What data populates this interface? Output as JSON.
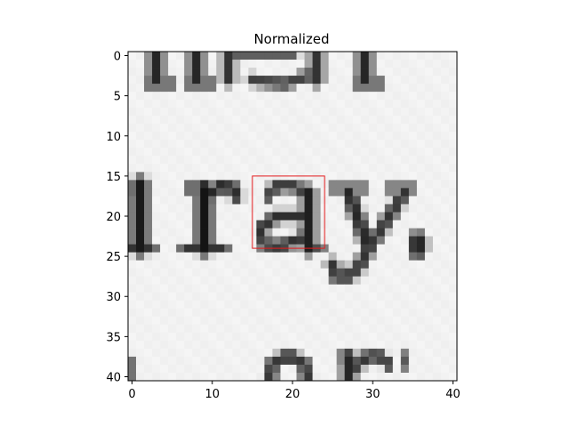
{
  "chart_data": {
    "type": "heatmap",
    "title": "Normalized",
    "xlabel": "",
    "ylabel": "",
    "image_size": [
      41,
      41
    ],
    "xlim": [
      -0.5,
      40.5
    ],
    "ylim": [
      40.5,
      -0.5
    ],
    "xticks": [
      0,
      10,
      20,
      30,
      40
    ],
    "yticks": [
      0,
      5,
      10,
      15,
      20,
      25,
      30,
      35,
      40
    ],
    "colormap": "gray",
    "background_value": 0.96,
    "ink_value": 0.12,
    "highlight_box": {
      "x": [
        15,
        24
      ],
      "y": [
        15,
        24
      ],
      "color": "#e41a1c"
    },
    "visible_text_in_image": [
      "ray.",
      "or"
    ],
    "strokes": [
      {
        "pts": [
          [
            3,
            -1
          ],
          [
            3,
            3
          ]
        ],
        "w": 1.4,
        "v": 0.15
      },
      {
        "pts": [
          [
            2,
            3.5
          ],
          [
            5,
            3.5
          ]
        ],
        "w": 0.9,
        "v": 0.25
      },
      {
        "pts": [
          [
            8,
            -1
          ],
          [
            8,
            3
          ]
        ],
        "w": 1.4,
        "v": 0.15
      },
      {
        "pts": [
          [
            7,
            3.5
          ],
          [
            10,
            3.5
          ]
        ],
        "w": 0.9,
        "v": 0.25
      },
      {
        "pts": [
          [
            12,
            -1
          ],
          [
            12,
            3
          ]
        ],
        "w": 1.2,
        "v": 0.2
      },
      {
        "pts": [
          [
            13,
            -0.5
          ],
          [
            20,
            -0.5
          ]
        ],
        "w": 1.2,
        "v": 0.25
      },
      {
        "pts": [
          [
            15,
            3
          ],
          [
            19,
            3.5
          ],
          [
            22,
            2.5
          ]
        ],
        "w": 1.1,
        "v": 0.25
      },
      {
        "pts": [
          [
            23,
            0
          ],
          [
            23,
            3
          ]
        ],
        "w": 1.3,
        "v": 0.2
      },
      {
        "pts": [
          [
            29,
            -1
          ],
          [
            29,
            3
          ]
        ],
        "w": 1.4,
        "v": 0.15
      },
      {
        "pts": [
          [
            28,
            3.5
          ],
          [
            31,
            3.5
          ]
        ],
        "w": 0.9,
        "v": 0.25
      },
      {
        "pts": [
          [
            1,
            16
          ],
          [
            1,
            24
          ]
        ],
        "w": 1.5,
        "v": 0.1
      },
      {
        "pts": [
          [
            0,
            16.5
          ],
          [
            1.5,
            16.5
          ]
        ],
        "w": 0.9,
        "v": 0.2
      },
      {
        "pts": [
          [
            0,
            24
          ],
          [
            2.5,
            24
          ]
        ],
        "w": 0.9,
        "v": 0.2
      },
      {
        "pts": [
          [
            9,
            16.5
          ],
          [
            9,
            24
          ]
        ],
        "w": 1.5,
        "v": 0.08
      },
      {
        "pts": [
          [
            6.5,
            24
          ],
          [
            11.5,
            24
          ]
        ],
        "w": 0.9,
        "v": 0.2
      },
      {
        "pts": [
          [
            7,
            16.5
          ],
          [
            9,
            16.5
          ]
        ],
        "w": 0.9,
        "v": 0.2
      },
      {
        "pts": [
          [
            9.5,
            17.5
          ],
          [
            11,
            16.2
          ],
          [
            12.5,
            16.5
          ],
          [
            13,
            17.5
          ]
        ],
        "w": 1.2,
        "v": 0.15
      },
      {
        "pts": [
          [
            17,
            17.5
          ],
          [
            18,
            16.2
          ],
          [
            20,
            16.2
          ],
          [
            21.5,
            17
          ]
        ],
        "w": 1.1,
        "v": 0.22
      },
      {
        "pts": [
          [
            22,
            17
          ],
          [
            22,
            24
          ]
        ],
        "w": 1.3,
        "v": 0.12
      },
      {
        "pts": [
          [
            21.5,
            20
          ],
          [
            18,
            20
          ],
          [
            16,
            21.5
          ],
          [
            16.5,
            23.5
          ],
          [
            18.5,
            23.8
          ],
          [
            21.5,
            22.5
          ]
        ],
        "w": 1.1,
        "v": 0.18
      },
      {
        "pts": [
          [
            22,
            24
          ],
          [
            23.5,
            24
          ]
        ],
        "w": 0.9,
        "v": 0.3
      },
      {
        "pts": [
          [
            25,
            16.5
          ],
          [
            29,
            16.5
          ]
        ],
        "w": 0.8,
        "v": 0.25
      },
      {
        "pts": [
          [
            32,
            16.5
          ],
          [
            35,
            16.5
          ]
        ],
        "w": 0.8,
        "v": 0.25
      },
      {
        "pts": [
          [
            27,
            17
          ],
          [
            29.5,
            24
          ]
        ],
        "w": 1.3,
        "v": 0.15
      },
      {
        "pts": [
          [
            34,
            17
          ],
          [
            29.5,
            24
          ],
          [
            28.5,
            26
          ],
          [
            27,
            27.5
          ],
          [
            25.5,
            27.5
          ],
          [
            25,
            26
          ]
        ],
        "w": 1.2,
        "v": 0.2
      },
      {
        "pts": [
          [
            35.6,
            23
          ],
          [
            35.6,
            24.2
          ]
        ],
        "w": 1.6,
        "v": 0.1
      },
      {
        "pts": [
          [
            0,
            38
          ],
          [
            0,
            41
          ]
        ],
        "w": 1.0,
        "v": 0.45
      },
      {
        "pts": [
          [
            17,
            41
          ],
          [
            17.5,
            38.5
          ],
          [
            19.5,
            37.3
          ],
          [
            21.5,
            38.5
          ],
          [
            22,
            41
          ]
        ],
        "w": 1.2,
        "v": 0.2
      },
      {
        "pts": [
          [
            27,
            37.5
          ],
          [
            27,
            41
          ]
        ],
        "w": 1.3,
        "v": 0.15
      },
      {
        "pts": [
          [
            26,
            37.5
          ],
          [
            27,
            37.5
          ]
        ],
        "w": 0.8,
        "v": 0.25
      },
      {
        "pts": [
          [
            27.5,
            39
          ],
          [
            29.5,
            37.4
          ],
          [
            31,
            37.5
          ],
          [
            32,
            38.5
          ]
        ],
        "w": 1.1,
        "v": 0.2
      },
      {
        "pts": [
          [
            34,
            37.5
          ],
          [
            34,
            38.5
          ]
        ],
        "w": 1.0,
        "v": 0.35
      }
    ]
  }
}
